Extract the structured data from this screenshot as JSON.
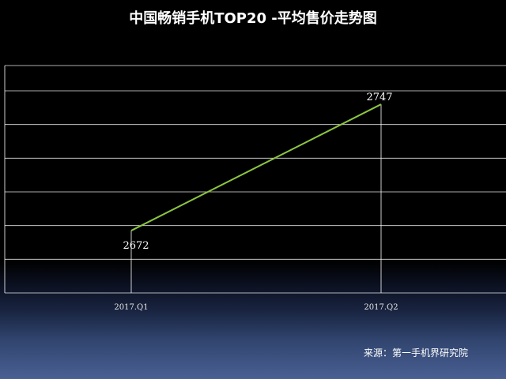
{
  "chart_data": {
    "type": "line",
    "title": "中国畅销手机TOP20 -平均售价走势图",
    "categories": [
      "2017.Q1",
      "2017.Q2"
    ],
    "series": [
      {
        "values": [
          2672,
          2747
        ],
        "color": "#8cc63f"
      }
    ],
    "data_labels": [
      "2672",
      "2747"
    ],
    "ylim": [
      2635,
      2770
    ],
    "y_gridlines": [
      2635,
      2655,
      2675,
      2695,
      2715,
      2735,
      2755,
      2770
    ],
    "y_tick_labels_shown": false,
    "grid": true,
    "legend": "none"
  },
  "footer": {
    "source": "来源：第一手机界研究院"
  },
  "colors": {
    "background_top": "#000000",
    "background_bottom": "#4a6093",
    "line": "#8cc63f",
    "grid": "#ffffff",
    "text": "#ffffff"
  }
}
